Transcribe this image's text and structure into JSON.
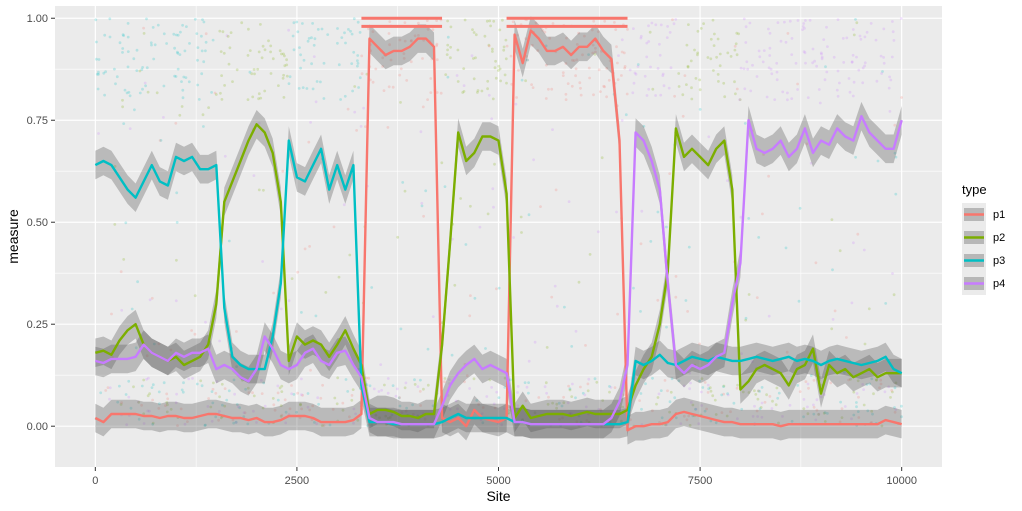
{
  "chart_data": {
    "type": "line",
    "xlabel": "Site",
    "ylabel": "measure",
    "xlim": [
      -500,
      10500
    ],
    "ylim": [
      -0.1,
      1.03
    ],
    "x_ticks": [
      0,
      2500,
      5000,
      7500,
      10000
    ],
    "x_tick_labels": [
      "0",
      "2500",
      "5000",
      "7500",
      "10000"
    ],
    "y_ticks": [
      0,
      0.25,
      0.5,
      0.75,
      1
    ],
    "y_tick_labels": [
      "0.00",
      "0.25",
      "0.50",
      "0.75",
      "1.00"
    ],
    "grid": true,
    "legend": {
      "title": "type",
      "placement": "right"
    },
    "colors": {
      "p1": "#F8766D",
      "p2": "#7CAE00",
      "p3": "#00BFC4",
      "p4": "#C77CFF"
    },
    "x": [
      0,
      100,
      200,
      300,
      400,
      500,
      600,
      700,
      800,
      900,
      1000,
      1100,
      1200,
      1300,
      1400,
      1500,
      1600,
      1700,
      1800,
      1900,
      2000,
      2100,
      2200,
      2300,
      2400,
      2500,
      2600,
      2700,
      2800,
      2900,
      3000,
      3100,
      3200,
      3300,
      3400,
      3500,
      3600,
      3700,
      3800,
      3900,
      4000,
      4100,
      4200,
      4300,
      4400,
      4500,
      4600,
      4700,
      4800,
      4900,
      5000,
      5100,
      5200,
      5300,
      5400,
      5500,
      5600,
      5700,
      5800,
      5900,
      6000,
      6100,
      6200,
      6300,
      6400,
      6500,
      6600,
      6700,
      6800,
      6900,
      7000,
      7100,
      7200,
      7300,
      7400,
      7500,
      7600,
      7700,
      7800,
      7900,
      8000,
      8100,
      8200,
      8300,
      8400,
      8500,
      8600,
      8700,
      8800,
      8900,
      9000,
      9100,
      9200,
      9300,
      9400,
      9500,
      9600,
      9700,
      9800,
      9900,
      10000
    ],
    "series": [
      {
        "name": "p1",
        "values": [
          0.02,
          0.01,
          0.03,
          0.03,
          0.03,
          0.03,
          0.025,
          0.025,
          0.02,
          0.025,
          0.025,
          0.02,
          0.02,
          0.025,
          0.03,
          0.03,
          0.025,
          0.02,
          0.02,
          0.015,
          0.02,
          0.01,
          0.01,
          0.015,
          0.025,
          0.025,
          0.025,
          0.02,
          0.01,
          0.01,
          0.01,
          0.01,
          0.015,
          0.03,
          0.95,
          0.93,
          0.91,
          0.92,
          0.92,
          0.93,
          0.95,
          0.95,
          0.93,
          0.02,
          0.01,
          0.02,
          0.0,
          0.04,
          0.02,
          0.015,
          0.01,
          0.02,
          0.96,
          0.89,
          0.97,
          0.95,
          0.92,
          0.92,
          0.93,
          0.91,
          0.93,
          0.93,
          0.95,
          0.92,
          0.9,
          0.7,
          -0.01,
          0.0,
          0.0,
          0.005,
          0.005,
          0.01,
          0.03,
          0.035,
          0.03,
          0.025,
          0.02,
          0.015,
          0.01,
          0.01,
          0.005,
          0.005,
          0.005,
          0.005,
          0.005,
          0.0,
          0.005,
          0.005,
          0.005,
          0.005,
          0.005,
          0.005,
          0.005,
          0.005,
          0.005,
          0.005,
          0.005,
          0.005,
          0.015,
          0.01,
          0.005
        ]
      },
      {
        "name": "p2",
        "values": [
          0.18,
          0.185,
          0.175,
          0.21,
          0.235,
          0.25,
          0.2,
          0.18,
          0.17,
          0.16,
          0.17,
          0.15,
          0.16,
          0.17,
          0.2,
          0.3,
          0.55,
          0.6,
          0.65,
          0.7,
          0.74,
          0.72,
          0.67,
          0.55,
          0.16,
          0.22,
          0.2,
          0.21,
          0.2,
          0.17,
          0.2,
          0.235,
          0.19,
          0.15,
          0.03,
          0.04,
          0.04,
          0.035,
          0.025,
          0.025,
          0.02,
          0.03,
          0.03,
          0.2,
          0.45,
          0.72,
          0.65,
          0.67,
          0.71,
          0.71,
          0.7,
          0.57,
          0.02,
          0.05,
          0.02,
          0.025,
          0.03,
          0.03,
          0.03,
          0.025,
          0.03,
          0.035,
          0.03,
          0.03,
          0.03,
          0.03,
          0.04,
          0.1,
          0.14,
          0.17,
          0.25,
          0.38,
          0.73,
          0.66,
          0.68,
          0.66,
          0.64,
          0.68,
          0.7,
          0.58,
          0.09,
          0.11,
          0.14,
          0.15,
          0.14,
          0.13,
          0.1,
          0.14,
          0.15,
          0.19,
          0.08,
          0.15,
          0.13,
          0.14,
          0.12,
          0.13,
          0.14,
          0.12,
          0.13,
          0.13,
          0.13
        ]
      },
      {
        "name": "p3",
        "values": [
          0.64,
          0.65,
          0.64,
          0.61,
          0.58,
          0.56,
          0.6,
          0.64,
          0.6,
          0.59,
          0.66,
          0.65,
          0.66,
          0.63,
          0.63,
          0.64,
          0.29,
          0.17,
          0.15,
          0.14,
          0.14,
          0.14,
          0.22,
          0.35,
          0.7,
          0.61,
          0.6,
          0.64,
          0.68,
          0.58,
          0.64,
          0.58,
          0.64,
          0.1,
          0.01,
          0.01,
          0.01,
          0.005,
          0.005,
          0.005,
          0.005,
          0.005,
          0.005,
          0.01,
          0.02,
          0.03,
          0.02,
          0.02,
          0.02,
          0.02,
          0.02,
          0.02,
          0.01,
          0.01,
          0.005,
          0.005,
          0.005,
          0.005,
          0.005,
          0.005,
          0.005,
          0.005,
          0.005,
          0.005,
          0.005,
          0.005,
          0.01,
          0.16,
          0.15,
          0.16,
          0.175,
          0.155,
          0.15,
          0.16,
          0.17,
          0.165,
          0.16,
          0.17,
          0.165,
          0.16,
          0.16,
          0.165,
          0.17,
          0.165,
          0.16,
          0.165,
          0.17,
          0.16,
          0.165,
          0.16,
          0.15,
          0.16,
          0.165,
          0.16,
          0.155,
          0.15,
          0.155,
          0.16,
          0.17,
          0.14,
          0.13
        ]
      },
      {
        "name": "p4",
        "values": [
          0.16,
          0.155,
          0.165,
          0.165,
          0.165,
          0.17,
          0.2,
          0.18,
          0.17,
          0.16,
          0.18,
          0.17,
          0.18,
          0.18,
          0.19,
          0.14,
          0.15,
          0.14,
          0.12,
          0.11,
          0.14,
          0.22,
          0.19,
          0.15,
          0.14,
          0.15,
          0.18,
          0.19,
          0.16,
          0.15,
          0.18,
          0.185,
          0.15,
          0.12,
          0.02,
          0.01,
          0.01,
          0.01,
          0.005,
          0.005,
          0.005,
          0.005,
          0.005,
          0.05,
          0.1,
          0.13,
          0.15,
          0.165,
          0.14,
          0.15,
          0.14,
          0.13,
          0.01,
          0.01,
          0.005,
          0.005,
          0.005,
          0.005,
          0.005,
          0.005,
          0.005,
          0.005,
          0.005,
          0.005,
          0.02,
          0.06,
          0.15,
          0.72,
          0.7,
          0.65,
          0.58,
          0.35,
          0.15,
          0.13,
          0.15,
          0.14,
          0.15,
          0.17,
          0.18,
          0.3,
          0.4,
          0.75,
          0.68,
          0.67,
          0.68,
          0.7,
          0.66,
          0.68,
          0.73,
          0.67,
          0.7,
          0.69,
          0.73,
          0.71,
          0.7,
          0.76,
          0.72,
          0.7,
          0.68,
          0.68,
          0.75
        ]
      }
    ],
    "fixed_segments": [
      {
        "series": "p1",
        "x": [
          3300,
          4300
        ],
        "y": [
          1.0,
          0.98
        ]
      },
      {
        "series": "p1",
        "x": [
          5100,
          6600
        ],
        "y": [
          1.0,
          0.98
        ]
      }
    ],
    "band_regions": [
      {
        "x": [
          0,
          1500
        ],
        "dominant": "p3"
      },
      {
        "x": [
          1500,
          2400
        ],
        "dominant": "p2"
      },
      {
        "x": [
          2400,
          3300
        ],
        "dominant": "p3"
      },
      {
        "x": [
          3300,
          4300
        ],
        "dominant": "p1"
      },
      {
        "x": [
          4300,
          5100
        ],
        "dominant": "p2"
      },
      {
        "x": [
          5100,
          6600
        ],
        "dominant": "p1"
      },
      {
        "x": [
          6600,
          7200
        ],
        "dominant": "p4"
      },
      {
        "x": [
          7200,
          8000
        ],
        "dominant": "p2"
      },
      {
        "x": [
          8000,
          10000
        ],
        "dominant": "p4"
      }
    ]
  }
}
